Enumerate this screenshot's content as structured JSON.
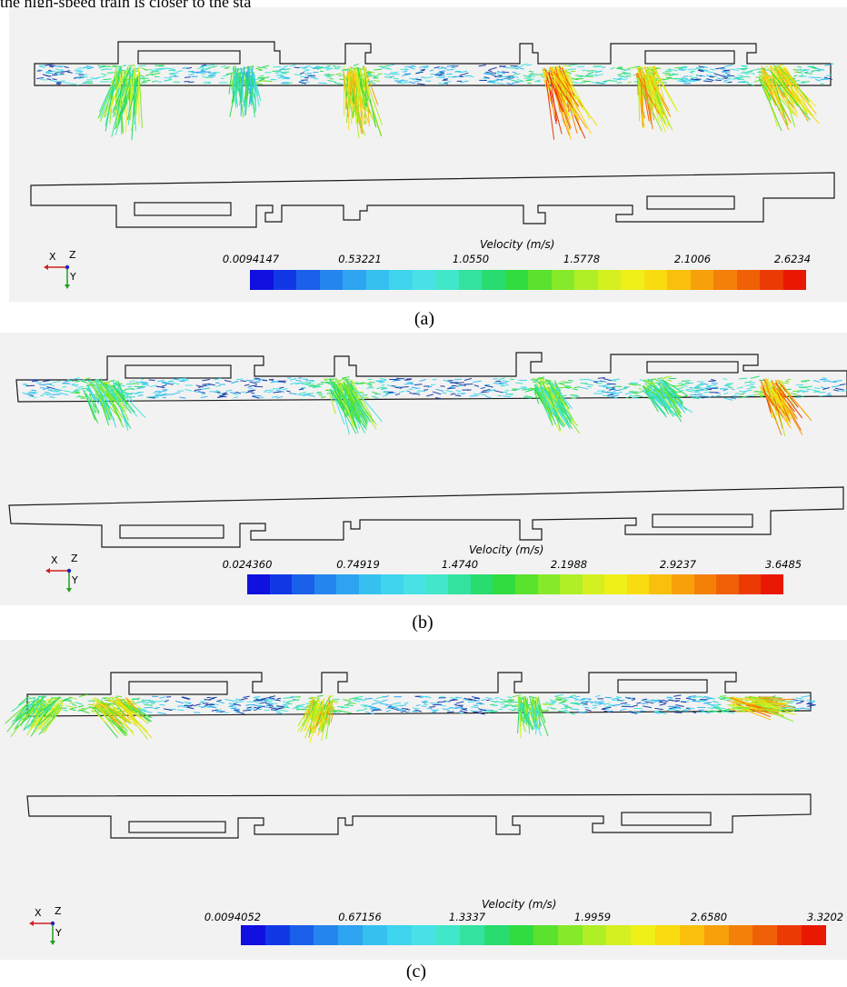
{
  "header_text": "the high-speed train is closer to the sta",
  "legend_title": "Velocity (m/s)",
  "axis_labels": {
    "x": "X",
    "y": "Y",
    "z": "Z"
  },
  "colors": {
    "scale": [
      "#1010e0",
      "#1238e6",
      "#1a60ea",
      "#2585ee",
      "#2ea4f0",
      "#36c0f0",
      "#3fd4ee",
      "#48e2e6",
      "#42e6c8",
      "#34e2a0",
      "#28dc70",
      "#30dc40",
      "#5ae22e",
      "#86ea2a",
      "#b0ee26",
      "#d4f020",
      "#eef018",
      "#f8dc10",
      "#f8c00c",
      "#f8a00a",
      "#f48008",
      "#f06006",
      "#ec3a04",
      "#e81802"
    ],
    "vector_cool": "#1c3ea8",
    "vector_mid": "#2ed8e8",
    "vector_green": "#58dc3a",
    "vector_warm": "#e8e020",
    "vector_hot": "#e84820",
    "axis_x": "#d02020",
    "axis_y": "#20a020",
    "axis_z": "#2020c0"
  },
  "panels": [
    {
      "caption": "(a)",
      "ticks": [
        "0.0094147",
        "0.53221",
        "1.0550",
        "1.5778",
        "2.1006",
        "2.6234"
      ]
    },
    {
      "caption": "(b)",
      "ticks": [
        "0.024360",
        "0.74919",
        "1.4740",
        "2.1988",
        "2.9237",
        "3.6485"
      ]
    },
    {
      "caption": "(c)",
      "ticks": [
        "0.0094052",
        "0.67156",
        "1.3337",
        "1.9959",
        "2.6580",
        "3.3202"
      ]
    }
  ]
}
